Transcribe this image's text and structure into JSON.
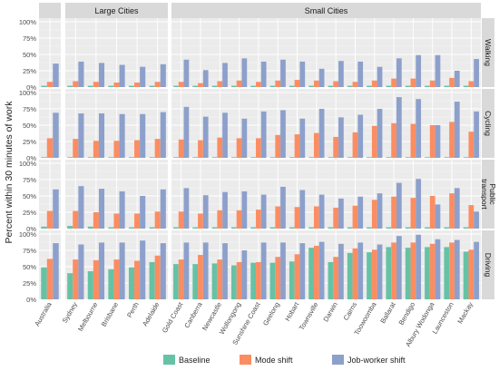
{
  "chart_data": {
    "type": "bar",
    "ylabel": "Percent within 30 minutes of work",
    "ylim": [
      0,
      100
    ],
    "yticks": [
      "0%",
      "25%",
      "50%",
      "75%",
      "100%"
    ],
    "columns": [
      {
        "label": "",
        "categories": [
          "Australia"
        ]
      },
      {
        "label": "Large Cities",
        "categories": [
          "Sydney",
          "Melbourne",
          "Brisbane",
          "Perth",
          "Adelaide"
        ]
      },
      {
        "label": "Small Cities",
        "categories": [
          "Gold Coast",
          "Canberra",
          "Newcastle",
          "Wollongong",
          "Sunshine Coast",
          "Geelong",
          "Hobart",
          "Townsville",
          "Darwin",
          "Cairns",
          "Toowoomba",
          "Ballarat",
          "Bendigo",
          "Albury Wodonga",
          "Launceston",
          "Mackay"
        ]
      }
    ],
    "series": [
      {
        "name": "Baseline",
        "color": "#66c2a5"
      },
      {
        "name": "Mode shift",
        "color": "#fc8d62"
      },
      {
        "name": "Job-worker shift",
        "color": "#8da0cb"
      }
    ],
    "rows": [
      {
        "label": "Walking",
        "values": {
          "Baseline": [
            2,
            2,
            2,
            2,
            2,
            2,
            2,
            2,
            2,
            2,
            2,
            2,
            2,
            2,
            2,
            2,
            2,
            2,
            2,
            2,
            2,
            2
          ],
          "Mode shift": [
            8,
            9,
            8,
            7,
            7,
            8,
            8,
            6,
            9,
            10,
            8,
            10,
            11,
            10,
            9,
            8,
            10,
            13,
            13,
            10,
            14,
            9
          ],
          "Job-worker shift": [
            36,
            39,
            37,
            34,
            31,
            35,
            42,
            26,
            37,
            44,
            39,
            42,
            39,
            28,
            40,
            39,
            31,
            44,
            49,
            49,
            25,
            43
          ]
        }
      },
      {
        "label": "Cycling",
        "values": {
          "Baseline": [
            1,
            1,
            1,
            1,
            1,
            1,
            1,
            1,
            1,
            1,
            1,
            1,
            1,
            1,
            1,
            1,
            1,
            1,
            1,
            1,
            1,
            1
          ],
          "Mode shift": [
            30,
            29,
            26,
            26,
            27,
            29,
            28,
            27,
            31,
            30,
            30,
            35,
            36,
            38,
            32,
            39,
            49,
            53,
            52,
            50,
            55,
            40
          ],
          "Job-worker shift": [
            69,
            68,
            68,
            67,
            67,
            70,
            78,
            63,
            69,
            60,
            71,
            73,
            60,
            75,
            62,
            66,
            75,
            93,
            90,
            50,
            86,
            71
          ]
        }
      },
      {
        "label": "Public transport",
        "values": {
          "Baseline": [
            3,
            4,
            3,
            2,
            2,
            2,
            2,
            2,
            2,
            2,
            2,
            2,
            2,
            2,
            2,
            2,
            2,
            2,
            2,
            2,
            2,
            2
          ],
          "Mode shift": [
            27,
            27,
            25,
            23,
            23,
            26,
            26,
            23,
            28,
            28,
            29,
            34,
            33,
            34,
            32,
            35,
            44,
            49,
            47,
            50,
            54,
            36
          ],
          "Job-worker shift": [
            60,
            65,
            61,
            57,
            50,
            60,
            62,
            51,
            56,
            57,
            52,
            64,
            59,
            52,
            46,
            49,
            54,
            70,
            76,
            37,
            62,
            26
          ]
        }
      },
      {
        "label": "Driving",
        "values": {
          "Baseline": [
            49,
            40,
            43,
            46,
            49,
            57,
            54,
            54,
            55,
            52,
            56,
            56,
            58,
            79,
            57,
            71,
            72,
            80,
            79,
            80,
            80,
            73
          ],
          "Mode shift": [
            62,
            61,
            60,
            61,
            59,
            67,
            61,
            68,
            61,
            57,
            57,
            65,
            69,
            82,
            65,
            78,
            76,
            87,
            87,
            85,
            87,
            76
          ],
          "Job-worker shift": [
            86,
            84,
            87,
            87,
            90,
            86,
            87,
            87,
            86,
            75,
            87,
            87,
            86,
            88,
            85,
            87,
            84,
            97,
            99,
            92,
            91,
            88
          ]
        }
      }
    ],
    "legend": {
      "position": "bottom"
    }
  }
}
